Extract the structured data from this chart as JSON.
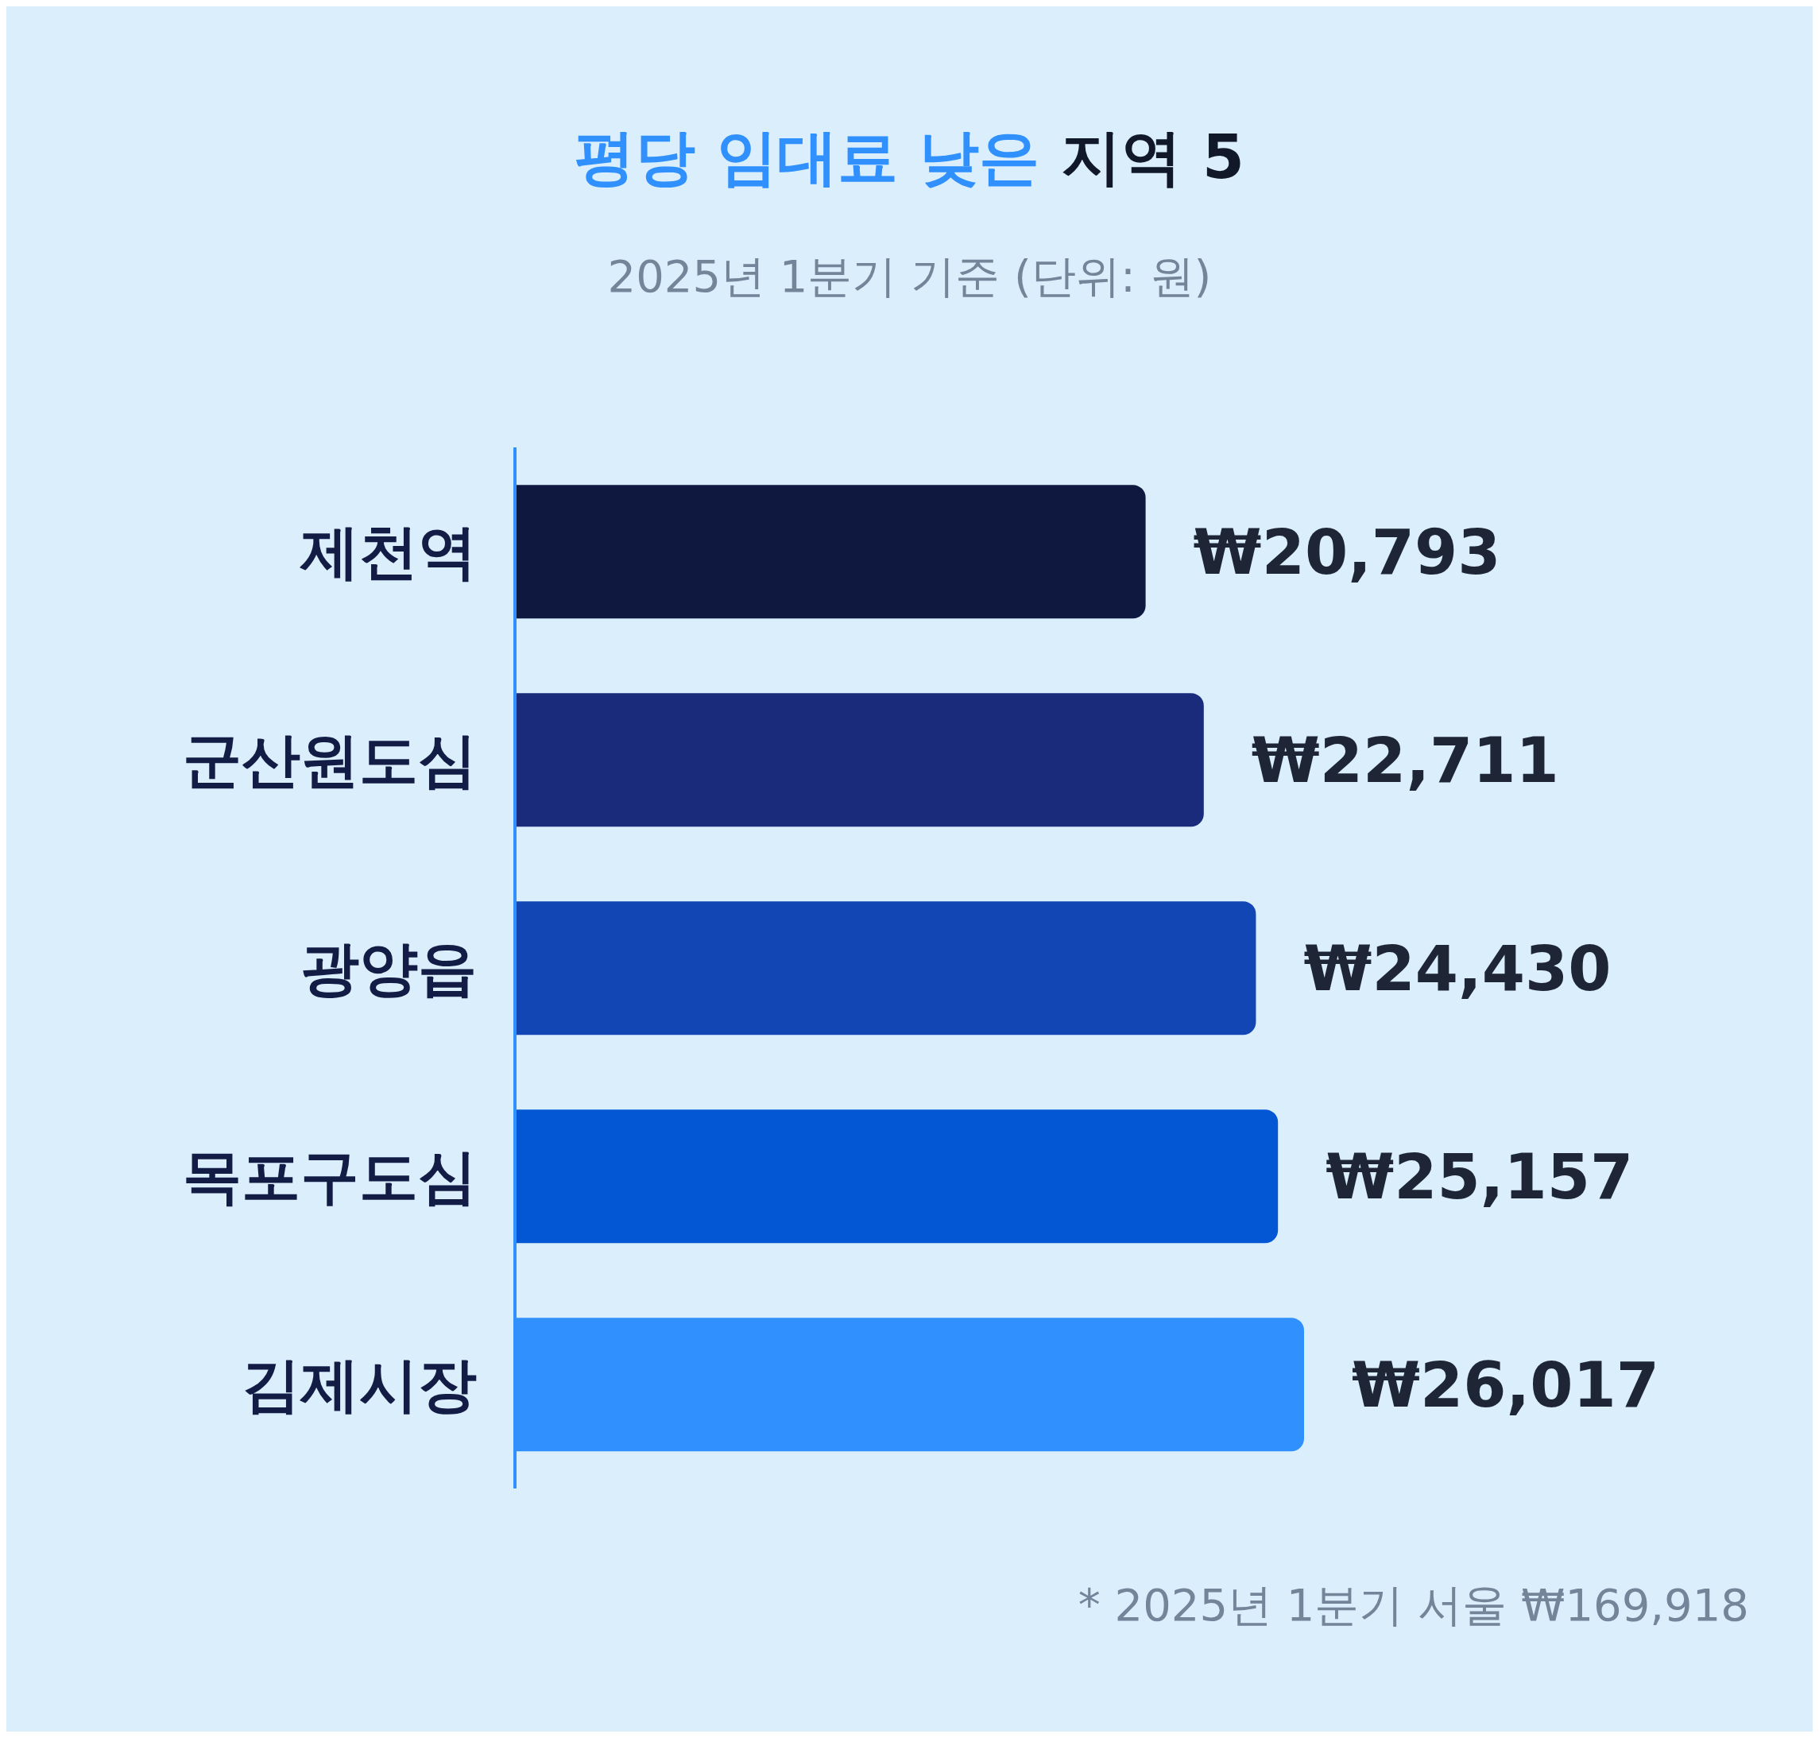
{
  "chart_data": {
    "type": "bar",
    "orientation": "horizontal",
    "title": "평당 임대료 낮은 지역 5",
    "subtitle": "2025년 1분기 기준 (단위: 원)",
    "categories": [
      "제천역",
      "군산원도심",
      "광양읍",
      "목포구도심",
      "김제시장"
    ],
    "values": [
      20793,
      22711,
      24430,
      25157,
      26017
    ],
    "value_labels": [
      "₩20,793",
      "₩22,711",
      "₩24,430",
      "₩25,157",
      "₩26,017"
    ],
    "colors": [
      "#0f1940",
      "#1a2b7c",
      "#1246b4",
      "#0357d5",
      "#3090fd"
    ],
    "annotations": [
      "* 2025년 1분기 서울 ₩169,918"
    ]
  }
}
